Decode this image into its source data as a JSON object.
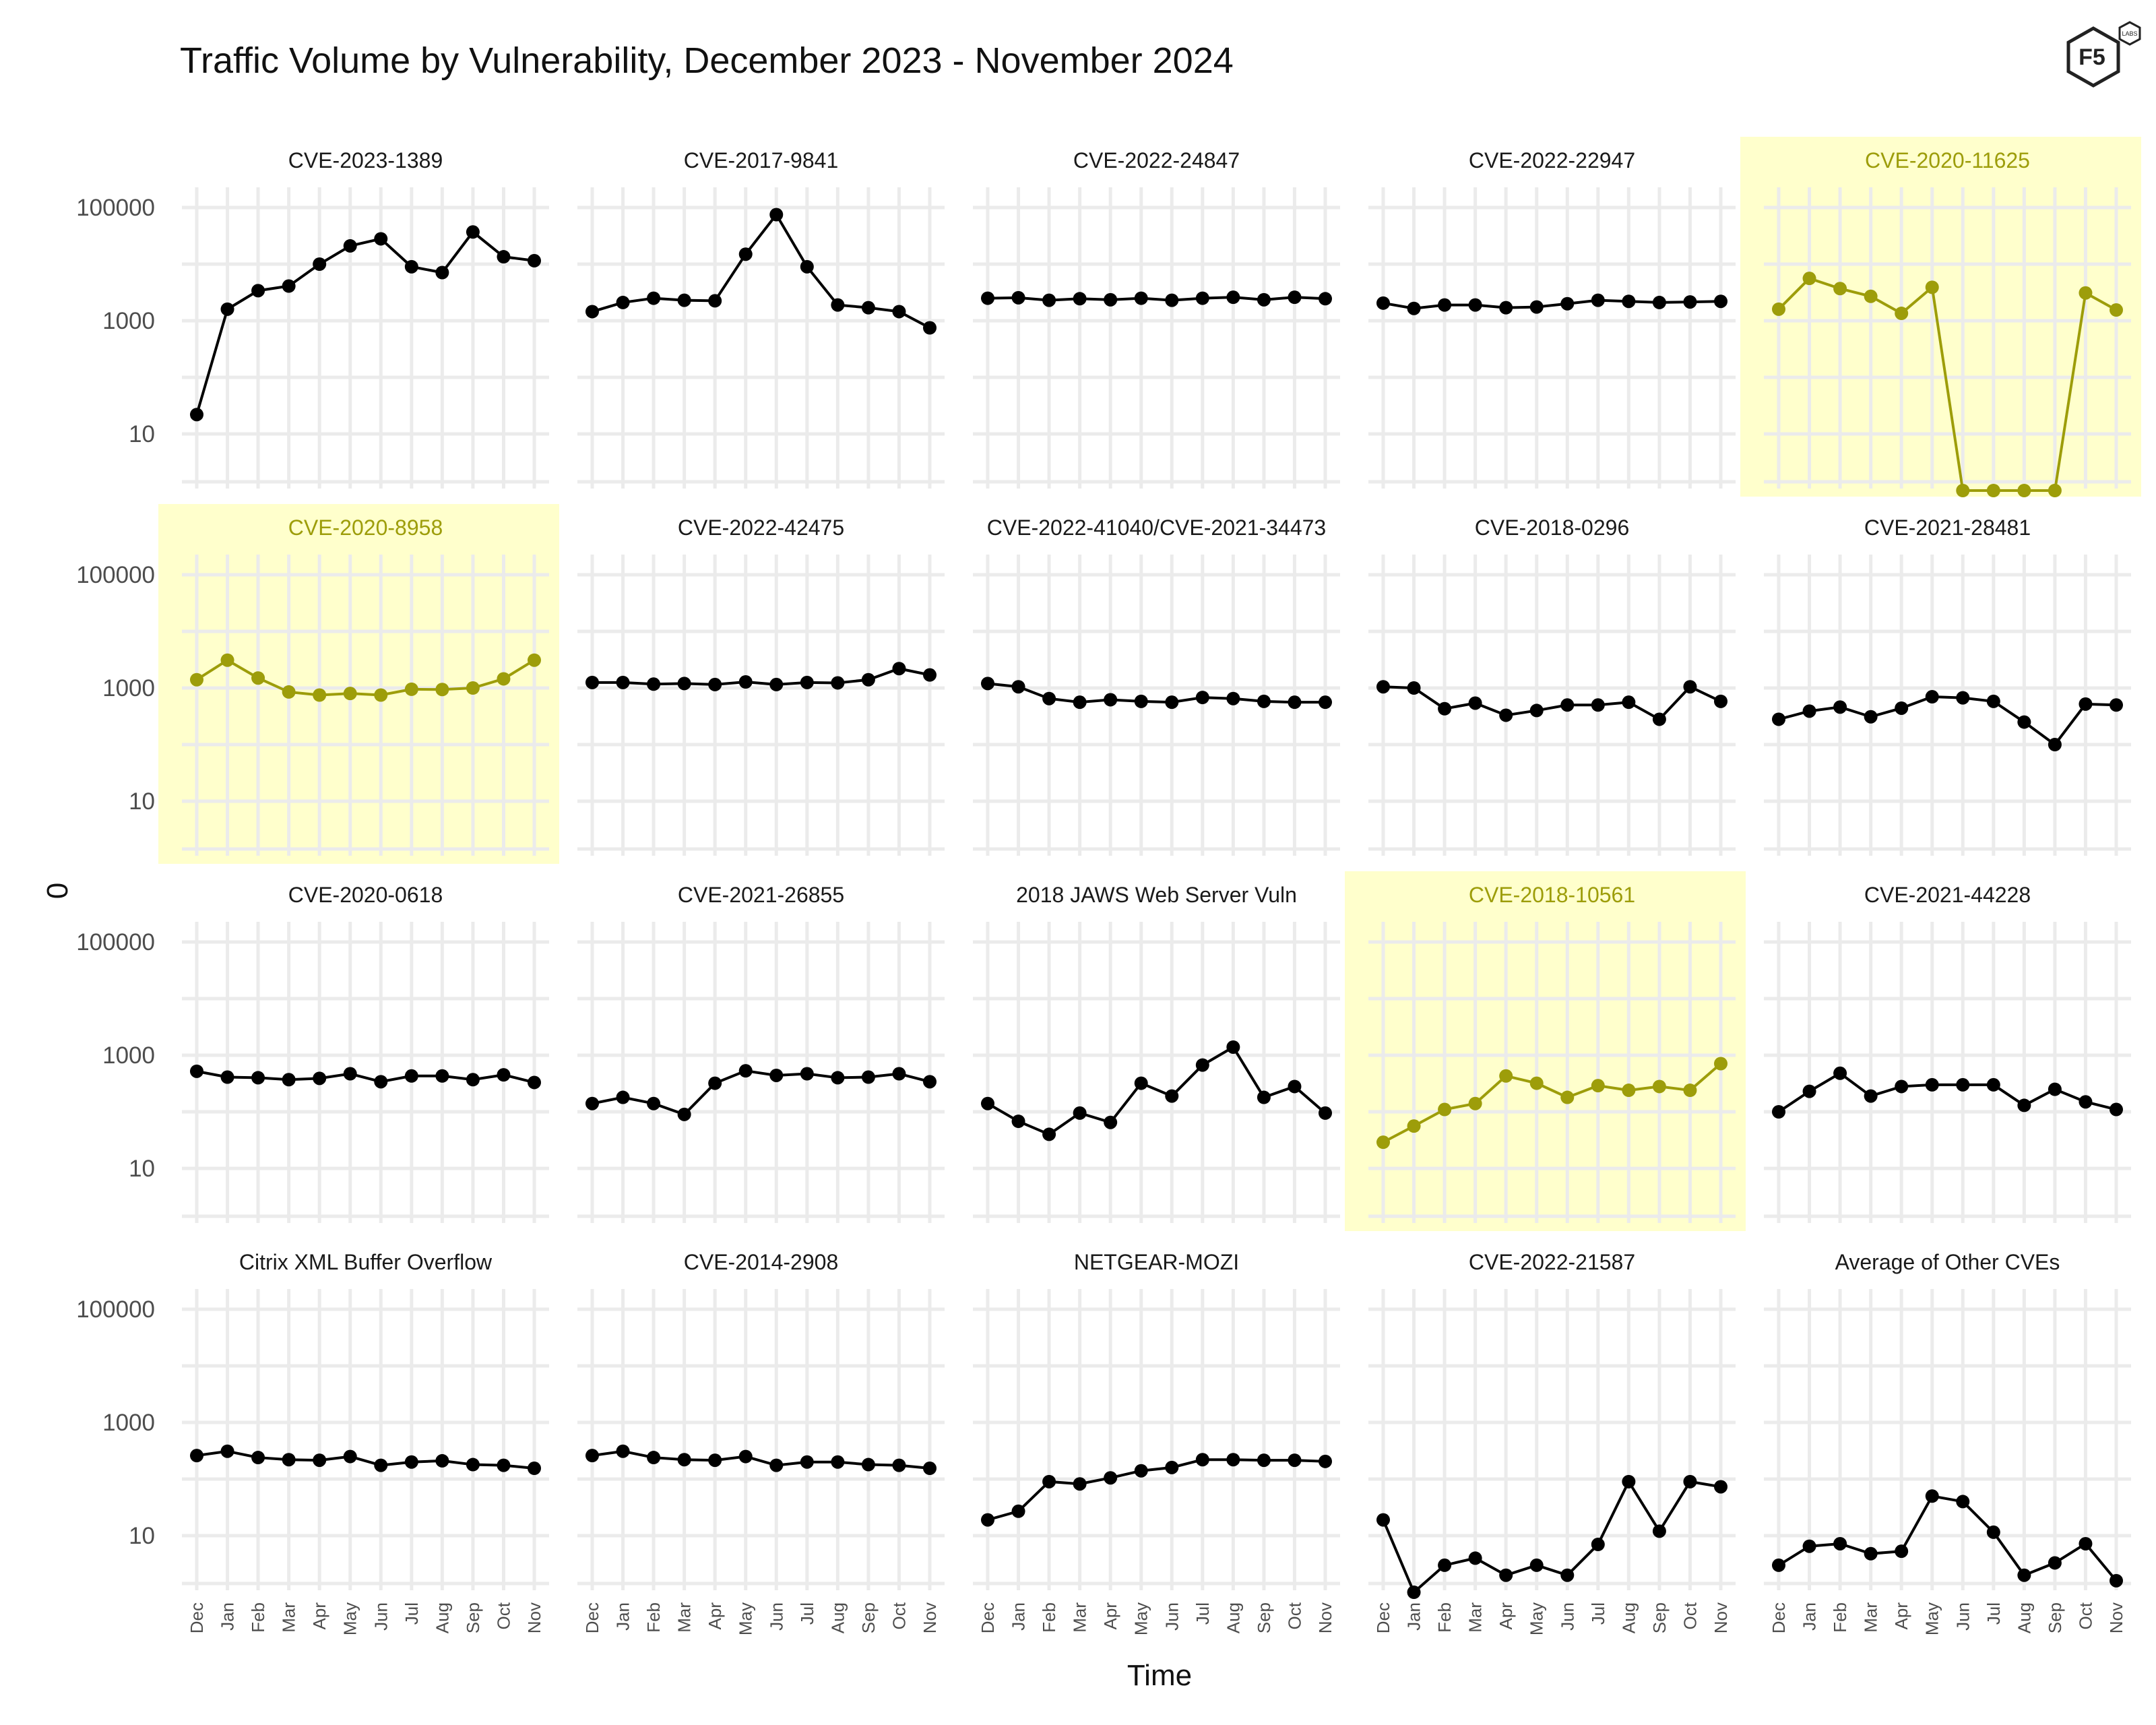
{
  "chart_data": {
    "type": "line",
    "title": "Traffic Volume by Vulnerability, December 2023 - November 2024",
    "xlabel": "Time",
    "ylabel": "0",
    "yscale": "log10",
    "y_tick_labels": [
      "10",
      "1000",
      "100000"
    ],
    "x_categories": [
      "Dec",
      "Jan",
      "Feb",
      "Mar",
      "Apr",
      "May",
      "Jun",
      "Jul",
      "Aug",
      "Sep",
      "Oct",
      "Nov"
    ],
    "grid": true,
    "layout": "4 rows x 5 columns, shared axes",
    "highlight_color": "#9d9d0a",
    "highlight_background": "#ffffcc",
    "line_color": "#000000",
    "panels": [
      {
        "name": "CVE-2023-1389",
        "highlight": false,
        "values": [
          22,
          1600,
          3400,
          4100,
          10000,
          21000,
          28000,
          9000,
          7100,
          37000,
          13500,
          11500
        ]
      },
      {
        "name": "CVE-2017-9841",
        "highlight": false,
        "values": [
          1450,
          2100,
          2500,
          2300,
          2250,
          15000,
          75000,
          9000,
          1900,
          1700,
          1450,
          750
        ]
      },
      {
        "name": "CVE-2022-24847",
        "highlight": false,
        "values": [
          2500,
          2550,
          2300,
          2450,
          2350,
          2500,
          2300,
          2500,
          2600,
          2350,
          2600,
          2450
        ]
      },
      {
        "name": "CVE-2022-22947",
        "highlight": false,
        "values": [
          2050,
          1650,
          1900,
          1900,
          1700,
          1750,
          2000,
          2300,
          2200,
          2100,
          2150,
          2200
        ]
      },
      {
        "name": "CVE-2020-11625",
        "highlight": true,
        "values": [
          1600,
          5600,
          3700,
          2700,
          1350,
          3900,
          1,
          1,
          1,
          1,
          3100,
          1550
        ]
      },
      {
        "name": "CVE-2020-8958",
        "highlight": true,
        "values": [
          1400,
          3100,
          1500,
          850,
          750,
          800,
          750,
          950,
          940,
          1000,
          1450,
          3100
        ]
      },
      {
        "name": "CVE-2022-42475",
        "highlight": false,
        "values": [
          1250,
          1250,
          1170,
          1200,
          1150,
          1280,
          1150,
          1250,
          1230,
          1400,
          2200,
          1700
        ]
      },
      {
        "name": "CVE-2022-41040/CVE-2021-34473",
        "highlight": false,
        "values": [
          1200,
          1050,
          650,
          560,
          620,
          580,
          560,
          680,
          650,
          580,
          560,
          560
        ]
      },
      {
        "name": "CVE-2018-0296",
        "highlight": false,
        "values": [
          1050,
          1000,
          430,
          540,
          330,
          400,
          500,
          500,
          560,
          280,
          1050,
          580
        ]
      },
      {
        "name": "CVE-2021-28481",
        "highlight": false,
        "values": [
          280,
          390,
          460,
          310,
          440,
          700,
          670,
          580,
          250,
          100,
          520,
          500
        ]
      },
      {
        "name": "CVE-2020-0618",
        "highlight": false,
        "values": [
          520,
          410,
          400,
          370,
          390,
          470,
          340,
          430,
          430,
          370,
          450,
          330
        ]
      },
      {
        "name": "CVE-2021-26855",
        "highlight": false,
        "values": [
          140,
          180,
          140,
          90,
          320,
          530,
          440,
          470,
          400,
          410,
          470,
          340
        ]
      },
      {
        "name": "2018 JAWS Web Server Vuln",
        "highlight": false,
        "values": [
          140,
          68,
          40,
          95,
          65,
          320,
          190,
          670,
          1390,
          180,
          280,
          95
        ]
      },
      {
        "name": "CVE-2018-10561",
        "highlight": true,
        "values": [
          29,
          56,
          110,
          140,
          430,
          320,
          180,
          290,
          240,
          280,
          240,
          710
        ]
      },
      {
        "name": "CVE-2021-44228",
        "highlight": false,
        "values": [
          100,
          230,
          480,
          190,
          280,
          300,
          300,
          300,
          130,
          250,
          150,
          110
        ]
      },
      {
        "name": "Citrix XML Buffer Overflow",
        "highlight": false,
        "values": [
          260,
          310,
          240,
          220,
          215,
          250,
          175,
          200,
          210,
          180,
          175,
          155
        ]
      },
      {
        "name": "CVE-2014-2908",
        "highlight": false,
        "values": [
          260,
          310,
          240,
          220,
          215,
          250,
          175,
          200,
          200,
          180,
          175,
          155
        ]
      },
      {
        "name": "NETGEAR-MOZI",
        "highlight": false,
        "values": [
          19,
          27,
          90,
          82,
          105,
          140,
          160,
          220,
          220,
          215,
          215,
          205
        ]
      },
      {
        "name": "CVE-2022-21587",
        "highlight": false,
        "values": [
          19,
          1,
          3,
          4,
          2,
          3,
          2,
          7,
          90,
          12,
          90,
          73
        ]
      },
      {
        "name": "Average of Other CVEs",
        "highlight": false,
        "values": [
          3,
          6.5,
          7.2,
          4.8,
          5.3,
          50,
          40,
          11.5,
          2,
          3.3,
          7.2,
          1.6
        ]
      }
    ]
  },
  "logo": {
    "text": "F5",
    "subtext": "LABS"
  }
}
